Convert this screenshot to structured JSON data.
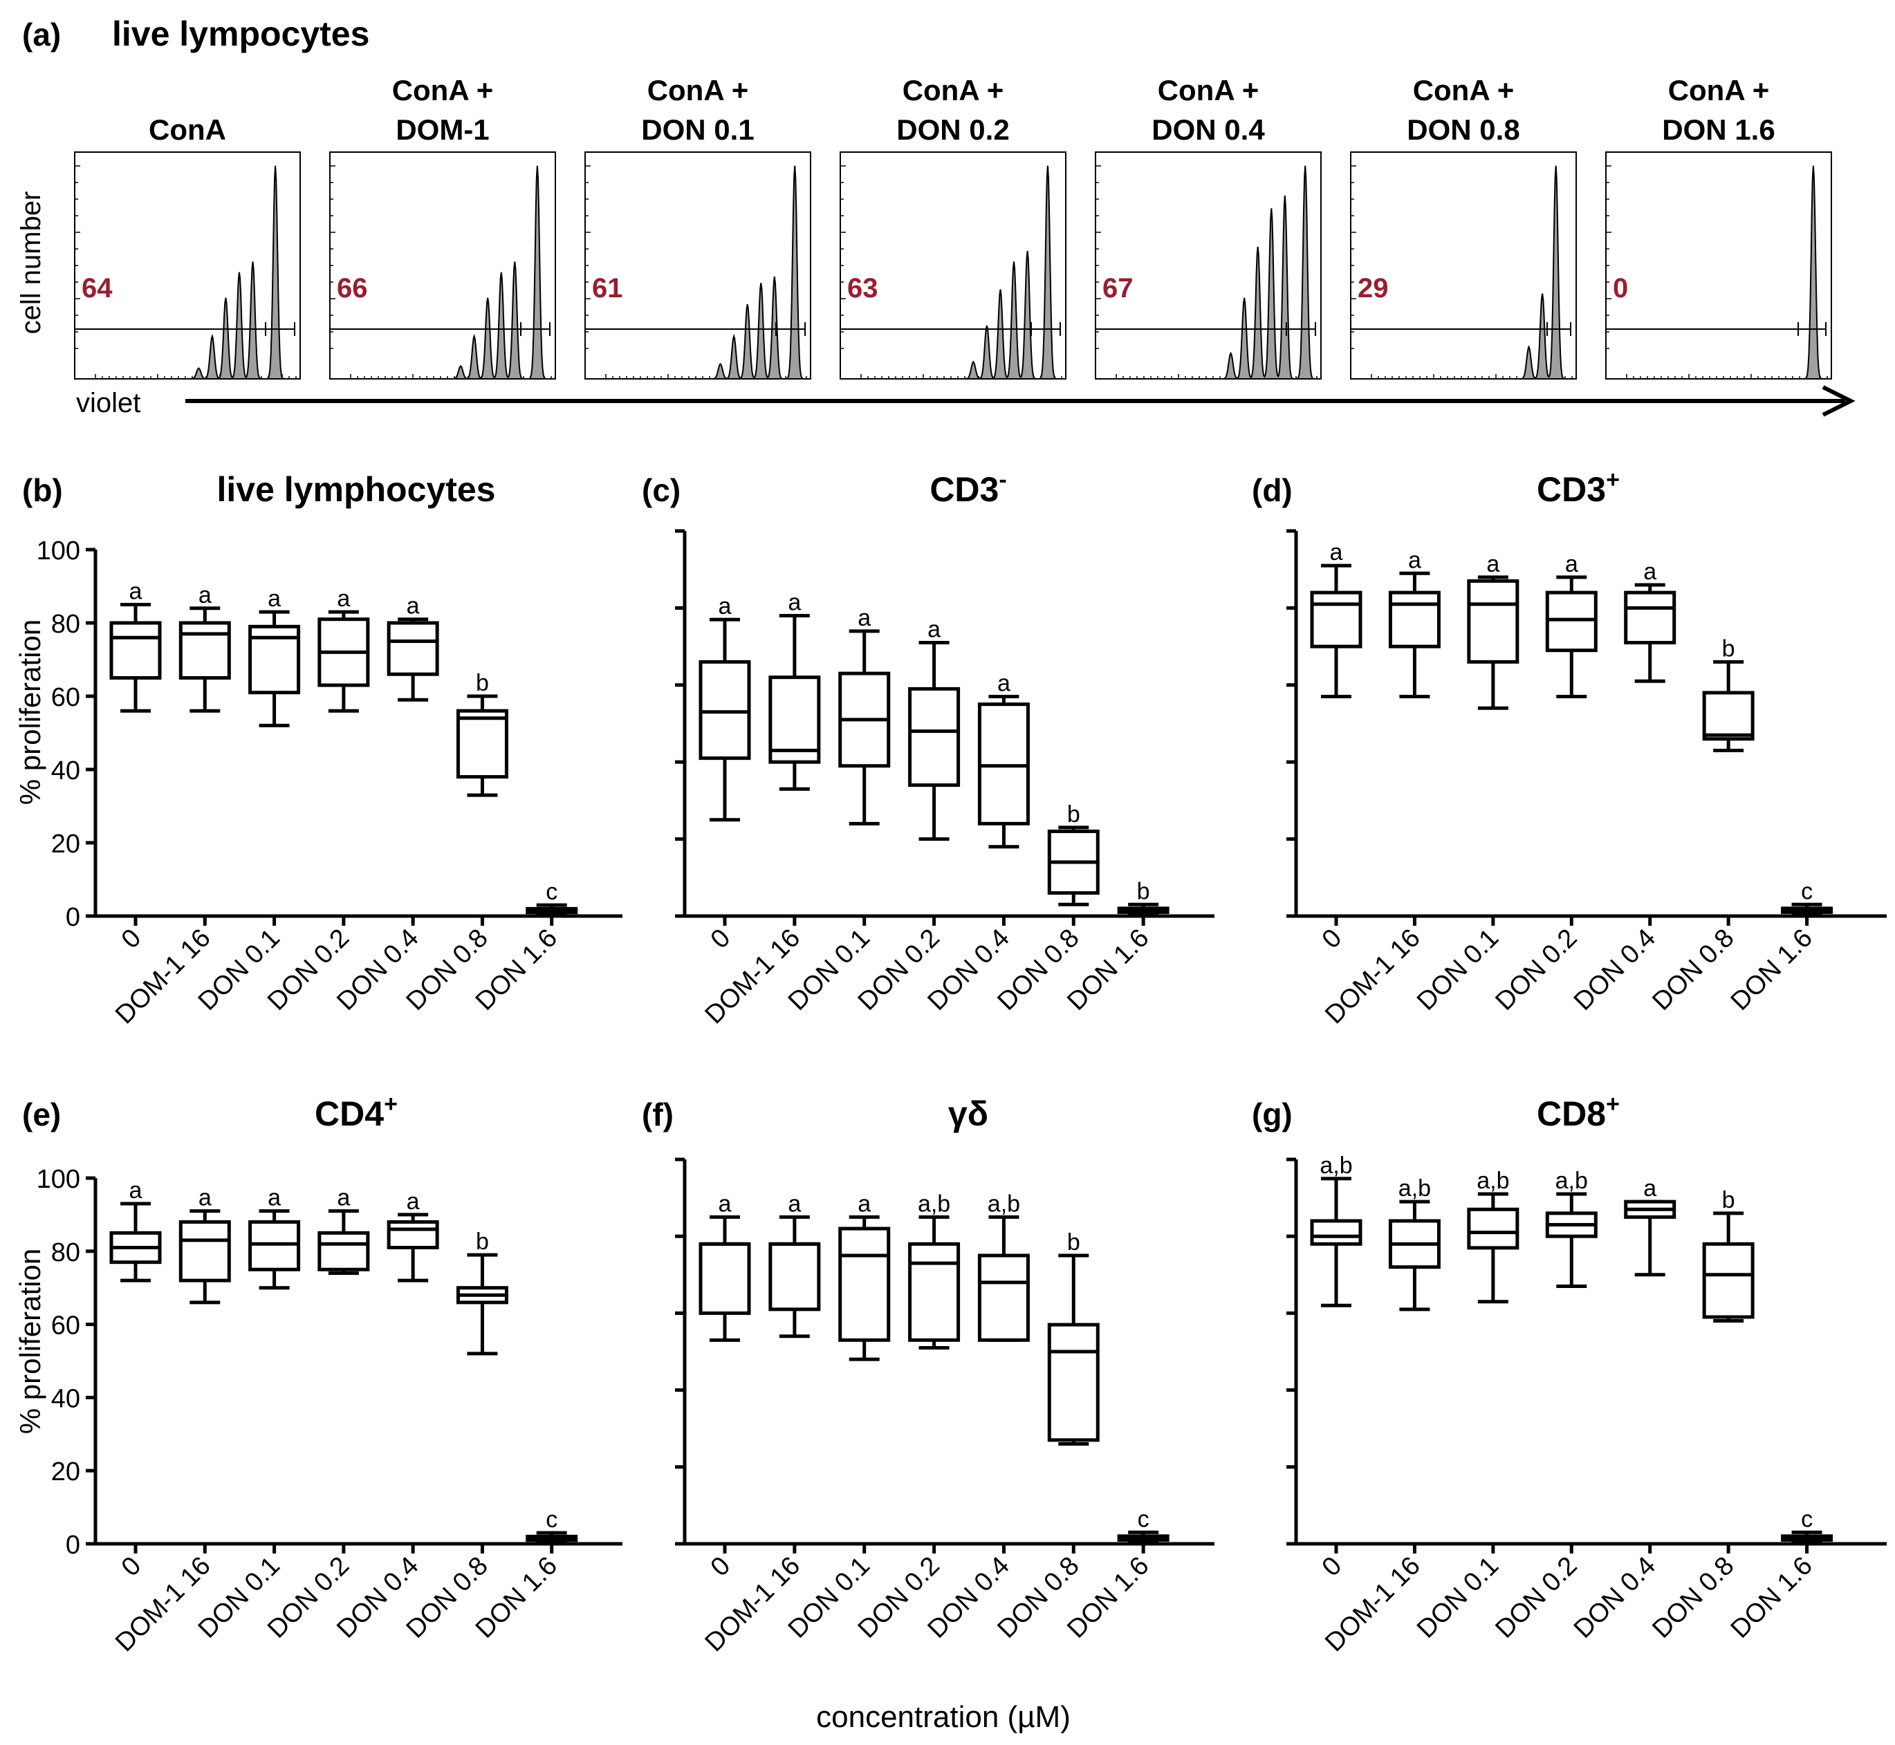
{
  "figure": {
    "x_axis_title": "concentration (µM)",
    "y_axis_title": "% proliferation",
    "colors": {
      "fill": "#a0a0a0",
      "count": "#9b1c31",
      "line": "#000000"
    }
  },
  "panel_a": {
    "letter": "(a)",
    "title": "live lympocytes",
    "y_label": "cell number",
    "x_label": "violet",
    "histograms": [
      {
        "line1": "",
        "line2": "ConA",
        "count": "64"
      },
      {
        "line1": "ConA +",
        "line2": "DOM-1",
        "count": "66"
      },
      {
        "line1": "ConA +",
        "line2": "DON 0.1",
        "count": "61"
      },
      {
        "line1": "ConA +",
        "line2": "DON 0.2",
        "count": "63"
      },
      {
        "line1": "ConA +",
        "line2": "DON 0.4",
        "count": "67"
      },
      {
        "line1": "ConA +",
        "line2": "DON 0.8",
        "count": "29"
      },
      {
        "line1": "ConA +",
        "line2": "DON 1.6",
        "count": "0"
      }
    ]
  },
  "chart_data": [
    {
      "type": "box",
      "letter": "(b)",
      "title": "live lymphocytes",
      "title_sup": "",
      "show_ytick_labels": true,
      "categories": [
        "0",
        "DOM-1 16",
        "DON 0.1",
        "DON 0.2",
        "DON 0.4",
        "DON 0.8",
        "DON 1.6"
      ],
      "ylim": [
        0,
        100
      ],
      "yticks": [
        0,
        20,
        40,
        60,
        80,
        100
      ],
      "boxes": [
        {
          "min": 56,
          "q1": 65,
          "median": 76,
          "q3": 80,
          "max": 85,
          "label": "a"
        },
        {
          "min": 56,
          "q1": 65,
          "median": 77,
          "q3": 80,
          "max": 84,
          "label": "a"
        },
        {
          "min": 52,
          "q1": 61,
          "median": 76,
          "q3": 79,
          "max": 83,
          "label": "a"
        },
        {
          "min": 56,
          "q1": 63,
          "median": 72,
          "q3": 81,
          "max": 83,
          "label": "a"
        },
        {
          "min": 59,
          "q1": 66,
          "median": 75,
          "q3": 80,
          "max": 81,
          "label": "a"
        },
        {
          "min": 33,
          "q1": 38,
          "median": 54,
          "q3": 56,
          "max": 60,
          "label": "b"
        },
        {
          "min": 0.5,
          "q1": 1,
          "median": 1.5,
          "q3": 2,
          "max": 3,
          "label": "c"
        }
      ]
    },
    {
      "type": "box",
      "letter": "(c)",
      "title": "CD3",
      "title_sup": "-",
      "show_ytick_labels": false,
      "categories": [
        "0",
        "DOM-1 16",
        "DON 0.1",
        "DON 0.2",
        "DON 0.4",
        "DON 0.8",
        "DON 1.6"
      ],
      "ylim": [
        0,
        100
      ],
      "yticks": [
        0,
        20,
        40,
        60,
        80,
        100
      ],
      "boxes": [
        {
          "min": 25,
          "q1": 41,
          "median": 53,
          "q3": 66,
          "max": 77,
          "label": "a"
        },
        {
          "min": 33,
          "q1": 40,
          "median": 43,
          "q3": 62,
          "max": 78,
          "label": "a"
        },
        {
          "min": 24,
          "q1": 39,
          "median": 51,
          "q3": 63,
          "max": 74,
          "label": "a"
        },
        {
          "min": 20,
          "q1": 34,
          "median": 48,
          "q3": 59,
          "max": 71,
          "label": "a"
        },
        {
          "min": 18,
          "q1": 24,
          "median": 39,
          "q3": 55,
          "max": 57,
          "label": "a"
        },
        {
          "min": 3,
          "q1": 6,
          "median": 14,
          "q3": 22,
          "max": 23,
          "label": "b"
        },
        {
          "min": 0.5,
          "q1": 1,
          "median": 1.5,
          "q3": 2,
          "max": 3,
          "label": "b"
        }
      ]
    },
    {
      "type": "box",
      "letter": "(d)",
      "title": "CD3",
      "title_sup": "+",
      "show_ytick_labels": false,
      "categories": [
        "0",
        "DOM-1 16",
        "DON 0.1",
        "DON 0.2",
        "DON 0.4",
        "DON 0.8",
        "DON 1.6"
      ],
      "ylim": [
        0,
        100
      ],
      "yticks": [
        0,
        20,
        40,
        60,
        80,
        100
      ],
      "boxes": [
        {
          "min": 57,
          "q1": 70,
          "median": 81,
          "q3": 84,
          "max": 91,
          "label": "a"
        },
        {
          "min": 57,
          "q1": 70,
          "median": 81,
          "q3": 84,
          "max": 89,
          "label": "a"
        },
        {
          "min": 54,
          "q1": 66,
          "median": 81,
          "q3": 87,
          "max": 88,
          "label": "a"
        },
        {
          "min": 57,
          "q1": 69,
          "median": 77,
          "q3": 84,
          "max": 88,
          "label": "a"
        },
        {
          "min": 61,
          "q1": 71,
          "median": 80,
          "q3": 84,
          "max": 86,
          "label": "a"
        },
        {
          "min": 43,
          "q1": 46,
          "median": 47,
          "q3": 58,
          "max": 66,
          "label": "b"
        },
        {
          "min": 0.5,
          "q1": 1,
          "median": 1.5,
          "q3": 2,
          "max": 3,
          "label": "c"
        }
      ]
    },
    {
      "type": "box",
      "letter": "(e)",
      "title": "CD4",
      "title_sup": "+",
      "show_ytick_labels": true,
      "categories": [
        "0",
        "DOM-1 16",
        "DON 0.1",
        "DON 0.2",
        "DON 0.4",
        "DON 0.8",
        "DON 1.6"
      ],
      "ylim": [
        0,
        100
      ],
      "yticks": [
        0,
        20,
        40,
        60,
        80,
        100
      ],
      "boxes": [
        {
          "min": 72,
          "q1": 77,
          "median": 81,
          "q3": 85,
          "max": 93,
          "label": "a"
        },
        {
          "min": 66,
          "q1": 72,
          "median": 83,
          "q3": 88,
          "max": 91,
          "label": "a"
        },
        {
          "min": 70,
          "q1": 75,
          "median": 82,
          "q3": 88,
          "max": 91,
          "label": "a"
        },
        {
          "min": 74,
          "q1": 75,
          "median": 82,
          "q3": 85,
          "max": 91,
          "label": "a"
        },
        {
          "min": 72,
          "q1": 81,
          "median": 86,
          "q3": 88,
          "max": 90,
          "label": "a"
        },
        {
          "min": 52,
          "q1": 66,
          "median": 68,
          "q3": 70,
          "max": 79,
          "label": "b"
        },
        {
          "min": 0.5,
          "q1": 1,
          "median": 1.5,
          "q3": 2,
          "max": 3,
          "label": "c"
        }
      ]
    },
    {
      "type": "box",
      "letter": "(f)",
      "title": "γδ",
      "title_sup": "",
      "show_ytick_labels": false,
      "categories": [
        "0",
        "DOM-1 16",
        "DON 0.1",
        "DON 0.2",
        "DON 0.4",
        "DON 0.8",
        "DON 1.6"
      ],
      "ylim": [
        0,
        100
      ],
      "yticks": [
        0,
        20,
        40,
        60,
        80,
        100
      ],
      "boxes": [
        {
          "min": 53,
          "q1": 60,
          "median": 78,
          "q3": 78,
          "max": 85,
          "label": "a"
        },
        {
          "min": 54,
          "q1": 61,
          "median": 78,
          "q3": 78,
          "max": 85,
          "label": "a"
        },
        {
          "min": 48,
          "q1": 53,
          "median": 75,
          "q3": 82,
          "max": 85,
          "label": "a"
        },
        {
          "min": 51,
          "q1": 53,
          "median": 73,
          "q3": 78,
          "max": 85,
          "label": "a,b"
        },
        {
          "min": 53,
          "q1": 53,
          "median": 68,
          "q3": 75,
          "max": 85,
          "label": "a,b"
        },
        {
          "min": 26,
          "q1": 27,
          "median": 50,
          "q3": 57,
          "max": 75,
          "label": "b"
        },
        {
          "min": 0.5,
          "q1": 1,
          "median": 1.5,
          "q3": 2,
          "max": 3,
          "label": "c"
        }
      ]
    },
    {
      "type": "box",
      "letter": "(g)",
      "title": "CD8",
      "title_sup": "+",
      "show_ytick_labels": false,
      "categories": [
        "0",
        "DOM-1 16",
        "DON 0.1",
        "DON 0.2",
        "DON 0.4",
        "DON 0.8",
        "DON 1.6"
      ],
      "ylim": [
        0,
        100
      ],
      "yticks": [
        0,
        20,
        40,
        60,
        80,
        100
      ],
      "boxes": [
        {
          "min": 62,
          "q1": 78,
          "median": 80,
          "q3": 84,
          "max": 95,
          "label": "a,b"
        },
        {
          "min": 61,
          "q1": 72,
          "median": 78,
          "q3": 84,
          "max": 89,
          "label": "a,b"
        },
        {
          "min": 63,
          "q1": 77,
          "median": 81,
          "q3": 87,
          "max": 91,
          "label": "a,b"
        },
        {
          "min": 67,
          "q1": 80,
          "median": 83,
          "q3": 86,
          "max": 91,
          "label": "a,b"
        },
        {
          "min": 70,
          "q1": 85,
          "median": 87,
          "q3": 89,
          "max": 89,
          "label": "a"
        },
        {
          "min": 58,
          "q1": 59,
          "median": 70,
          "q3": 78,
          "max": 86,
          "label": "b"
        },
        {
          "min": 0.5,
          "q1": 1,
          "median": 1.5,
          "q3": 2,
          "max": 3,
          "label": "c"
        }
      ]
    }
  ]
}
